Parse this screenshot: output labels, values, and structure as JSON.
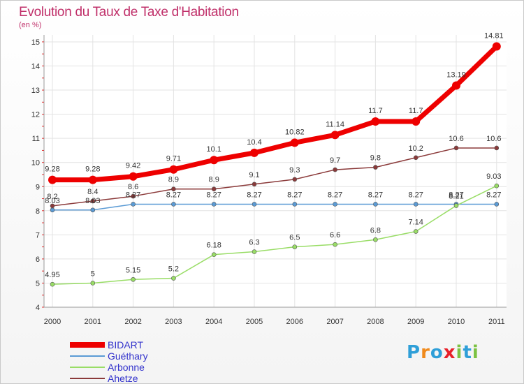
{
  "title": "Evolution du Taux de Taxe d'Habitation",
  "unit": "(en %)",
  "brand": {
    "letters": [
      "P",
      "r",
      "o",
      "x",
      "i",
      "t",
      "i"
    ],
    "colors": [
      "#2f9fd8",
      "#f08a1c",
      "#2f9fd8",
      "#e8212a",
      "#7cc242",
      "#2f9fd8",
      "#7cc242"
    ]
  },
  "chart_data": {
    "type": "line",
    "x": [
      2000,
      2001,
      2002,
      2003,
      2004,
      2005,
      2006,
      2007,
      2008,
      2009,
      2010,
      2011
    ],
    "ylim": [
      4,
      15
    ],
    "yticks": [
      4,
      5,
      6,
      7,
      8,
      9,
      10,
      11,
      12,
      13,
      14,
      15
    ],
    "ytick_labels": [
      "4",
      "5",
      "6",
      "7",
      "8",
      "9",
      "10",
      "11",
      "12",
      "13",
      "14",
      "15"
    ],
    "grid": true,
    "legend": "bottom-left",
    "series": [
      {
        "name": "BIDART",
        "color": "#ee0000",
        "values": [
          9.28,
          9.28,
          9.42,
          9.71,
          10.1,
          10.4,
          10.82,
          11.14,
          11.7,
          11.7,
          13.19,
          14.81
        ],
        "labels": [
          "9.28",
          "9.28",
          "9.42",
          "9.71",
          "10.1",
          "10.4",
          "10.82",
          "11.14",
          "11.7",
          "11.7",
          "13.19",
          "14.81"
        ]
      },
      {
        "name": "Guéthary",
        "color": "#5b9bd5",
        "values": [
          8.03,
          8.03,
          8.27,
          8.27,
          8.27,
          8.27,
          8.27,
          8.27,
          8.27,
          8.27,
          8.27,
          8.27
        ],
        "labels": [
          "8.03",
          "8.03",
          "8.27",
          "8.27",
          "8.27",
          "8.27",
          "8.27",
          "8.27",
          "8.27",
          "8.27",
          "8.27",
          "8.27"
        ]
      },
      {
        "name": "Arbonne",
        "color": "#99dd66",
        "values": [
          4.95,
          5,
          5.15,
          5.2,
          6.18,
          6.3,
          6.5,
          6.6,
          6.8,
          7.14,
          8.21,
          9.03
        ],
        "labels": [
          "4.95",
          "5",
          "5.15",
          "5.2",
          "6.18",
          "6.3",
          "6.5",
          "6.6",
          "6.8",
          "7.14",
          "8.21",
          "9.03"
        ]
      },
      {
        "name": "Ahetze",
        "color": "#8b3a3a",
        "values": [
          8.2,
          8.4,
          8.6,
          8.9,
          8.9,
          9.1,
          9.3,
          9.7,
          9.8,
          10.2,
          10.6,
          10.6
        ],
        "labels": [
          "8.2",
          "8.4",
          "8.6",
          "8.9",
          "8.9",
          "9.1",
          "9.3",
          "9.7",
          "9.8",
          "10.2",
          "10.6",
          "10.6"
        ]
      }
    ]
  }
}
